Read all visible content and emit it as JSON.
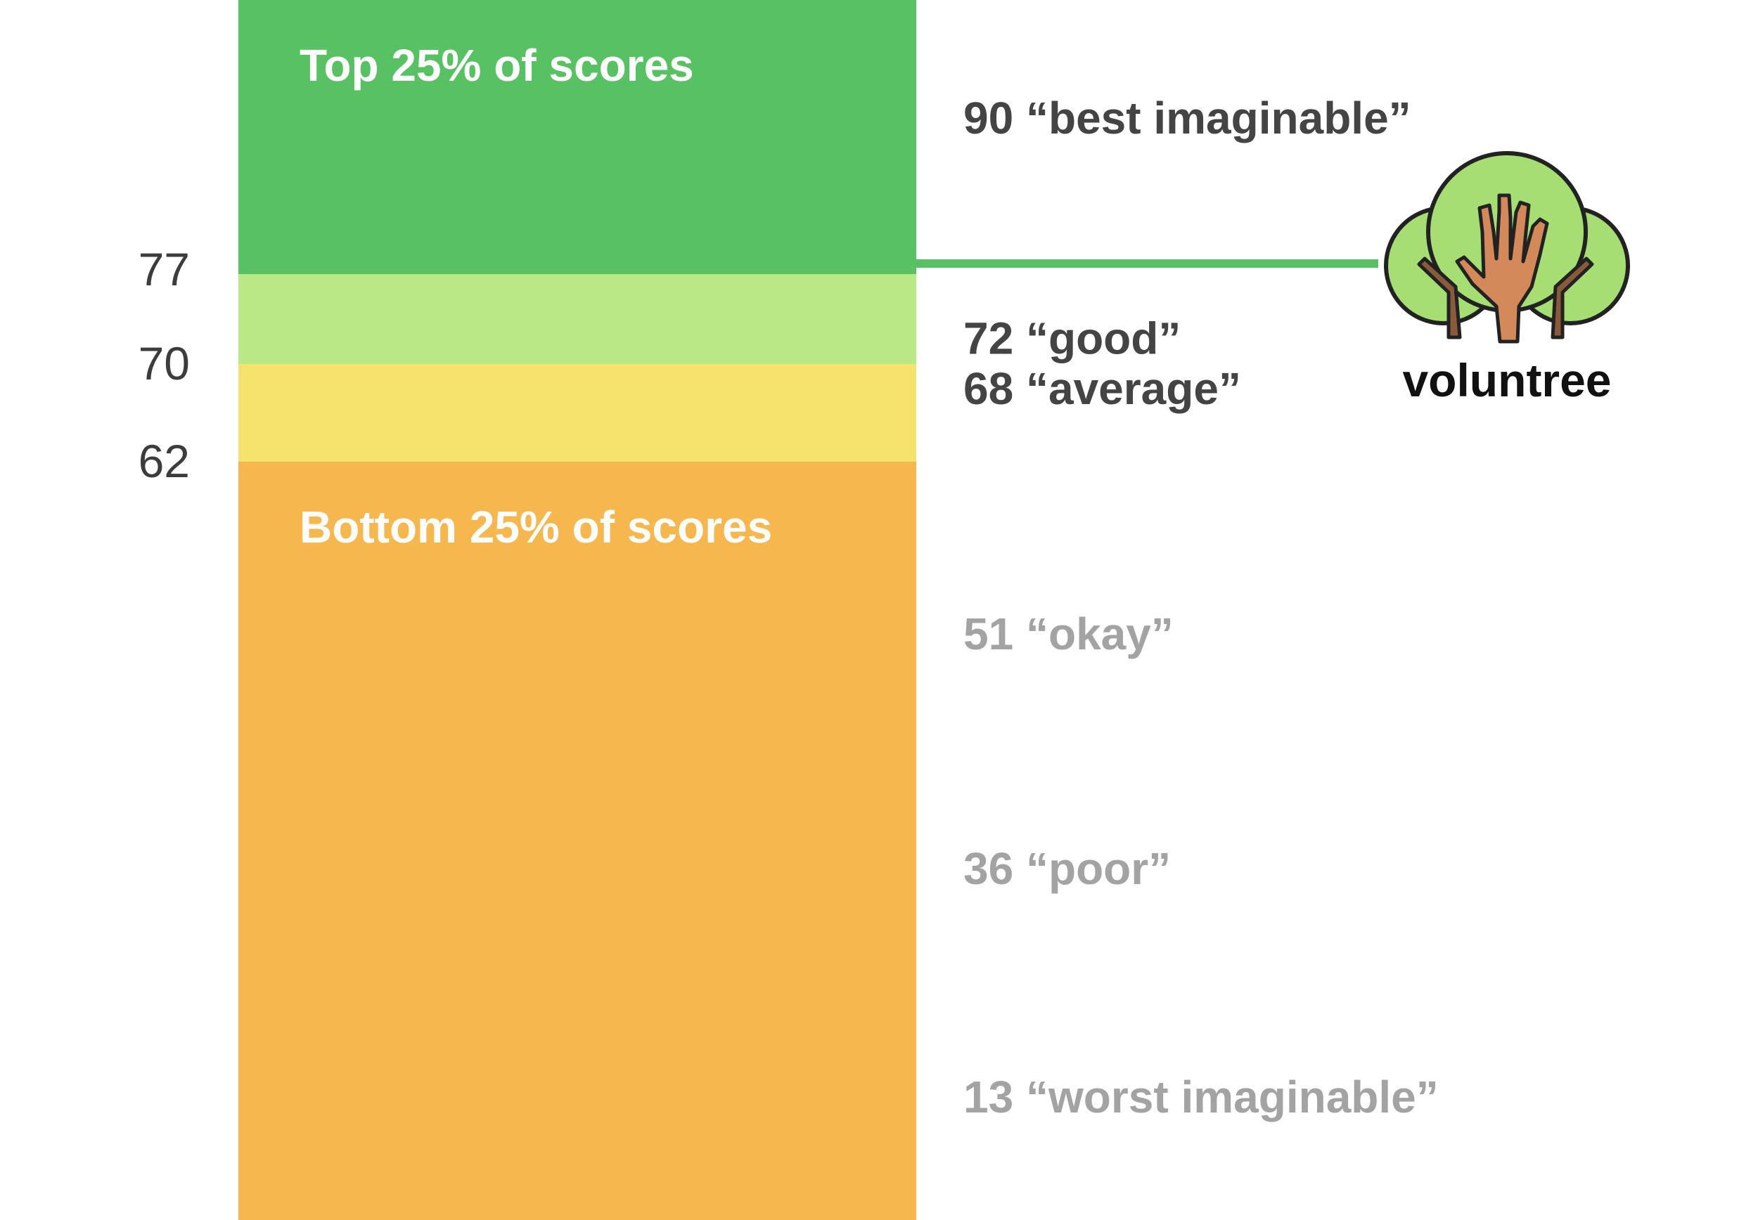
{
  "chart_data": {
    "type": "bar",
    "title": "",
    "ylim": [
      13,
      90
    ],
    "bands": [
      {
        "from": 77,
        "to": 90,
        "color": "#58c164",
        "label": "Top 25% of scores"
      },
      {
        "from": 70,
        "to": 77,
        "color": "#bae886",
        "label": ""
      },
      {
        "from": 62,
        "to": 70,
        "color": "#f5e36e",
        "label": ""
      },
      {
        "from": 13,
        "to": 62,
        "color": "#f6b74f",
        "label": "Bottom 25% of scores"
      }
    ],
    "boundary_ticks": [
      "77",
      "70",
      "62"
    ],
    "reference_scores": [
      {
        "score": 90,
        "label": "90 “best imaginable”",
        "color": "#444444"
      },
      {
        "score": 72,
        "label": "72 “good”",
        "color": "#444444"
      },
      {
        "score": 68,
        "label": "68 “average”",
        "color": "#444444"
      },
      {
        "score": 51,
        "label": "51 “okay”",
        "color": "#a3a3a3"
      },
      {
        "score": 36,
        "label": "36 “poor”",
        "color": "#a3a3a3"
      },
      {
        "score": 13,
        "label": "13 “worst imaginable”",
        "color": "#a3a3a3"
      }
    ],
    "marker": {
      "score": 77.5,
      "color": "#58c164"
    }
  },
  "logo": {
    "text": "voluntree",
    "icon": "hand-tree-icon",
    "leaf_color": "#a6de74",
    "trunk_color": "#8a5a3c",
    "hand_color": "#d4895a"
  }
}
